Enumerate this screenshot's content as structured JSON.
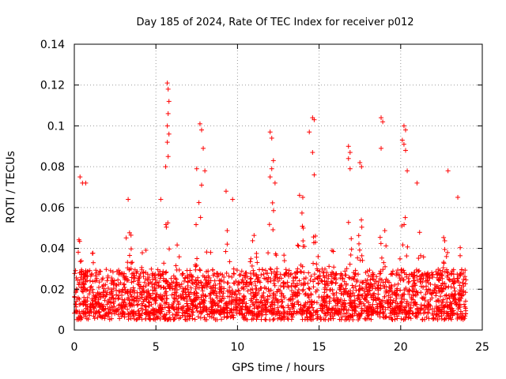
{
  "chart_data": {
    "type": "scatter",
    "title": "Day 185 of 2024, Rate Of TEC Index for receiver p012",
    "xlabel": "GPS time / hours",
    "ylabel": "ROTI / TECUs",
    "xlim": [
      0,
      25
    ],
    "ylim": [
      0,
      0.14
    ],
    "x_ticks": [
      0,
      5,
      10,
      15,
      20,
      25
    ],
    "x_tick_labels": [
      "0",
      "5",
      "10",
      "15",
      "20",
      "25"
    ],
    "y_ticks": [
      0,
      0.02,
      0.04,
      0.06,
      0.08,
      0.1,
      0.12,
      0.14
    ],
    "y_tick_labels": [
      "0",
      "0.02",
      "0.04",
      "0.06",
      "0.08",
      "0.1",
      "0.12",
      "0.14"
    ],
    "grid": true,
    "marker": "+",
    "color": "#ff0000",
    "data_extent_x": [
      0,
      24
    ],
    "typical_range_y": [
      0.005,
      0.03
    ],
    "notable_points": [
      {
        "x": 0.35,
        "y": 0.075
      },
      {
        "x": 0.5,
        "y": 0.072
      },
      {
        "x": 0.7,
        "y": 0.072
      },
      {
        "x": 3.3,
        "y": 0.064
      },
      {
        "x": 5.3,
        "y": 0.064
      },
      {
        "x": 5.7,
        "y": 0.121
      },
      {
        "x": 5.75,
        "y": 0.118
      },
      {
        "x": 5.8,
        "y": 0.112
      },
      {
        "x": 5.75,
        "y": 0.106
      },
      {
        "x": 5.7,
        "y": 0.1
      },
      {
        "x": 5.8,
        "y": 0.096
      },
      {
        "x": 5.7,
        "y": 0.092
      },
      {
        "x": 5.75,
        "y": 0.085
      },
      {
        "x": 5.6,
        "y": 0.08
      },
      {
        "x": 7.5,
        "y": 0.079
      },
      {
        "x": 7.7,
        "y": 0.101
      },
      {
        "x": 7.8,
        "y": 0.098
      },
      {
        "x": 7.9,
        "y": 0.089
      },
      {
        "x": 8.0,
        "y": 0.078
      },
      {
        "x": 7.8,
        "y": 0.071
      },
      {
        "x": 9.3,
        "y": 0.068
      },
      {
        "x": 9.7,
        "y": 0.064
      },
      {
        "x": 12.0,
        "y": 0.097
      },
      {
        "x": 12.1,
        "y": 0.094
      },
      {
        "x": 12.2,
        "y": 0.083
      },
      {
        "x": 12.1,
        "y": 0.079
      },
      {
        "x": 12.0,
        "y": 0.075
      },
      {
        "x": 12.3,
        "y": 0.072
      },
      {
        "x": 13.8,
        "y": 0.066
      },
      {
        "x": 14.0,
        "y": 0.065
      },
      {
        "x": 14.4,
        "y": 0.097
      },
      {
        "x": 14.6,
        "y": 0.104
      },
      {
        "x": 14.7,
        "y": 0.103
      },
      {
        "x": 14.6,
        "y": 0.087
      },
      {
        "x": 14.7,
        "y": 0.076
      },
      {
        "x": 16.8,
        "y": 0.09
      },
      {
        "x": 16.9,
        "y": 0.087
      },
      {
        "x": 16.8,
        "y": 0.084
      },
      {
        "x": 16.9,
        "y": 0.079
      },
      {
        "x": 17.5,
        "y": 0.082
      },
      {
        "x": 17.6,
        "y": 0.08
      },
      {
        "x": 18.8,
        "y": 0.104
      },
      {
        "x": 18.9,
        "y": 0.102
      },
      {
        "x": 18.8,
        "y": 0.089
      },
      {
        "x": 20.2,
        "y": 0.1
      },
      {
        "x": 20.3,
        "y": 0.098
      },
      {
        "x": 20.1,
        "y": 0.093
      },
      {
        "x": 20.2,
        "y": 0.091
      },
      {
        "x": 20.3,
        "y": 0.088
      },
      {
        "x": 20.4,
        "y": 0.078
      },
      {
        "x": 21.0,
        "y": 0.072
      },
      {
        "x": 22.9,
        "y": 0.078
      },
      {
        "x": 23.5,
        "y": 0.065
      }
    ],
    "burst_profile": [
      {
        "center": 0.3,
        "amplitude": 0.045
      },
      {
        "center": 1.2,
        "amplitude": 0.04
      },
      {
        "center": 3.3,
        "amplitude": 0.06
      },
      {
        "center": 4.3,
        "amplitude": 0.045
      },
      {
        "center": 5.7,
        "amplitude": 0.06
      },
      {
        "center": 6.4,
        "amplitude": 0.05
      },
      {
        "center": 7.6,
        "amplitude": 0.065
      },
      {
        "center": 8.2,
        "amplitude": 0.055
      },
      {
        "center": 9.4,
        "amplitude": 0.055
      },
      {
        "center": 11.0,
        "amplitude": 0.05
      },
      {
        "center": 12.1,
        "amplitude": 0.07
      },
      {
        "center": 13.0,
        "amplitude": 0.045
      },
      {
        "center": 13.9,
        "amplitude": 0.06
      },
      {
        "center": 14.8,
        "amplitude": 0.055
      },
      {
        "center": 15.8,
        "amplitude": 0.045
      },
      {
        "center": 16.8,
        "amplitude": 0.065
      },
      {
        "center": 17.6,
        "amplitude": 0.06
      },
      {
        "center": 18.9,
        "amplitude": 0.06
      },
      {
        "center": 20.2,
        "amplitude": 0.06
      },
      {
        "center": 21.2,
        "amplitude": 0.05
      },
      {
        "center": 22.7,
        "amplitude": 0.05
      },
      {
        "center": 23.6,
        "amplitude": 0.045
      }
    ]
  }
}
